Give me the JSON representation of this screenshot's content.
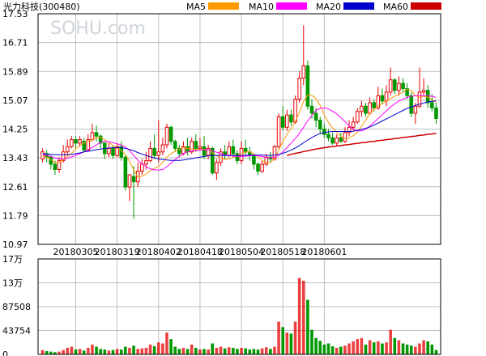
{
  "chart_data": {
    "type": "candlestick",
    "title": "光力科技(300480)",
    "watermark": "SOHU.com",
    "legend": [
      {
        "name": "MA5",
        "color": "#ff9900"
      },
      {
        "name": "MA10",
        "color": "#ff00ff"
      },
      {
        "name": "MA20",
        "color": "#0000cc"
      },
      {
        "name": "MA60",
        "color": "#cc0000"
      }
    ],
    "colors": {
      "up": "#e60000",
      "down": "#009900",
      "grid": "#bfbfbf",
      "frame": "#000000"
    },
    "price_axis": {
      "ticks": [
        "17.53",
        "16.71",
        "15.89",
        "15.07",
        "14.25",
        "13.43",
        "12.61",
        "11.79",
        "10.97"
      ],
      "range": [
        10.97,
        17.53
      ]
    },
    "volume_axis": {
      "ticks": [
        "17万",
        "13万",
        "87508",
        "43754",
        "0"
      ],
      "range": [
        0,
        175000
      ]
    },
    "date_labels": [
      {
        "label": "20180305",
        "index": 8
      },
      {
        "label": "20180319",
        "index": 18
      },
      {
        "label": "20180402",
        "index": 28
      },
      {
        "label": "20180418",
        "index": 38
      },
      {
        "label": "20180504",
        "index": 48
      },
      {
        "label": "20180518",
        "index": 58
      },
      {
        "label": "20180601",
        "index": 68
      }
    ],
    "candles": [
      [
        13.4,
        13.6,
        13.3,
        13.7
      ],
      [
        13.55,
        13.45,
        13.3,
        13.65
      ],
      [
        13.45,
        13.25,
        13.1,
        13.5
      ],
      [
        13.25,
        13.1,
        12.95,
        13.35
      ],
      [
        13.1,
        13.35,
        13.0,
        13.45
      ],
      [
        13.35,
        13.6,
        13.3,
        13.8
      ],
      [
        13.6,
        13.75,
        13.5,
        13.95
      ],
      [
        13.75,
        13.95,
        13.7,
        14.05
      ],
      [
        13.95,
        13.85,
        13.7,
        14.05
      ],
      [
        13.85,
        13.95,
        13.75,
        14.05
      ],
      [
        13.9,
        13.65,
        13.6,
        14.0
      ],
      [
        13.65,
        13.95,
        13.6,
        14.1
      ],
      [
        13.95,
        14.15,
        13.9,
        14.4
      ],
      [
        14.15,
        14.05,
        13.9,
        14.35
      ],
      [
        14.05,
        13.85,
        13.7,
        14.1
      ],
      [
        13.85,
        13.55,
        13.4,
        13.9
      ],
      [
        13.55,
        13.7,
        13.45,
        13.85
      ],
      [
        13.7,
        13.5,
        13.4,
        13.8
      ],
      [
        13.5,
        13.75,
        13.45,
        13.85
      ],
      [
        13.75,
        13.45,
        13.35,
        13.9
      ],
      [
        13.45,
        12.6,
        12.5,
        13.5
      ],
      [
        12.6,
        12.95,
        12.2,
        12.95
      ],
      [
        12.9,
        12.75,
        11.7,
        13.2
      ],
      [
        12.75,
        13.05,
        12.6,
        13.3
      ],
      [
        13.05,
        13.25,
        12.95,
        13.4
      ],
      [
        13.25,
        13.35,
        13.1,
        13.6
      ],
      [
        13.35,
        13.7,
        13.3,
        13.9
      ],
      [
        13.7,
        13.5,
        13.4,
        14.1
      ],
      [
        13.5,
        13.6,
        13.3,
        14.5
      ],
      [
        13.6,
        13.8,
        13.5,
        14.0
      ],
      [
        13.8,
        14.3,
        13.7,
        14.4
      ],
      [
        14.3,
        13.9,
        13.8,
        14.35
      ],
      [
        13.9,
        13.7,
        13.6,
        13.95
      ],
      [
        13.7,
        13.55,
        13.45,
        13.8
      ],
      [
        13.55,
        13.75,
        13.5,
        13.9
      ],
      [
        13.75,
        13.6,
        13.5,
        14.0
      ],
      [
        13.6,
        13.9,
        13.55,
        14.0
      ],
      [
        13.9,
        13.7,
        13.6,
        14.1
      ],
      [
        13.7,
        13.75,
        13.65,
        14.0
      ],
      [
        13.75,
        13.5,
        13.4,
        14.05
      ],
      [
        13.5,
        13.7,
        13.4,
        13.8
      ],
      [
        13.7,
        13.0,
        12.95,
        13.75
      ],
      [
        13.0,
        13.3,
        12.8,
        13.4
      ],
      [
        13.3,
        13.6,
        13.2,
        13.7
      ],
      [
        13.6,
        13.5,
        13.4,
        13.8
      ],
      [
        13.5,
        13.75,
        13.45,
        13.9
      ],
      [
        13.75,
        13.55,
        13.45,
        13.95
      ],
      [
        13.55,
        13.35,
        13.25,
        13.65
      ],
      [
        13.35,
        13.7,
        13.25,
        13.9
      ],
      [
        13.7,
        13.6,
        13.5,
        13.95
      ],
      [
        13.6,
        13.5,
        13.35,
        13.75
      ],
      [
        13.5,
        13.25,
        13.1,
        13.55
      ],
      [
        13.25,
        13.05,
        12.95,
        13.3
      ],
      [
        13.05,
        13.25,
        13.0,
        13.35
      ],
      [
        13.25,
        13.45,
        13.2,
        13.55
      ],
      [
        13.45,
        13.4,
        13.3,
        13.6
      ],
      [
        13.4,
        13.75,
        13.35,
        13.8
      ],
      [
        13.75,
        14.6,
        13.7,
        14.7
      ],
      [
        14.6,
        14.3,
        14.2,
        14.9
      ],
      [
        14.3,
        14.65,
        14.2,
        14.8
      ],
      [
        14.65,
        14.45,
        14.35,
        14.8
      ],
      [
        14.45,
        15.1,
        14.4,
        15.2
      ],
      [
        15.1,
        15.7,
        15.0,
        15.9
      ],
      [
        15.7,
        16.05,
        15.5,
        17.2
      ],
      [
        16.05,
        14.9,
        14.8,
        16.2
      ],
      [
        14.9,
        14.7,
        14.55,
        15.1
      ],
      [
        14.7,
        14.5,
        14.3,
        14.85
      ],
      [
        14.5,
        14.25,
        14.1,
        14.6
      ],
      [
        14.25,
        14.1,
        14.0,
        14.4
      ],
      [
        14.1,
        14.0,
        13.9,
        14.25
      ],
      [
        14.0,
        13.85,
        13.8,
        14.15
      ],
      [
        13.85,
        14.0,
        13.75,
        14.1
      ],
      [
        14.0,
        13.9,
        13.85,
        14.15
      ],
      [
        13.9,
        14.15,
        13.85,
        14.3
      ],
      [
        14.15,
        14.3,
        14.05,
        14.5
      ],
      [
        14.3,
        14.45,
        14.2,
        14.6
      ],
      [
        14.45,
        14.75,
        14.4,
        14.85
      ],
      [
        14.75,
        14.9,
        14.6,
        15.05
      ],
      [
        14.9,
        14.7,
        14.6,
        15.0
      ],
      [
        14.7,
        15.0,
        14.65,
        15.15
      ],
      [
        15.0,
        14.85,
        14.75,
        15.1
      ],
      [
        14.85,
        15.2,
        14.8,
        15.45
      ],
      [
        15.2,
        15.05,
        14.95,
        15.4
      ],
      [
        15.05,
        15.3,
        14.9,
        15.5
      ],
      [
        15.3,
        15.65,
        15.2,
        16.0
      ],
      [
        15.65,
        15.35,
        15.25,
        15.7
      ],
      [
        15.35,
        15.55,
        15.2,
        15.75
      ],
      [
        15.55,
        15.4,
        15.3,
        15.7
      ],
      [
        15.4,
        15.2,
        15.1,
        15.55
      ],
      [
        15.2,
        14.7,
        14.6,
        15.3
      ],
      [
        14.7,
        14.9,
        14.4,
        15.0
      ],
      [
        14.9,
        15.3,
        14.85,
        16.0
      ],
      [
        15.3,
        15.35,
        15.2,
        15.7
      ],
      [
        15.35,
        15.0,
        14.85,
        15.5
      ],
      [
        15.0,
        14.85,
        14.75,
        15.25
      ],
      [
        14.85,
        14.55,
        14.4,
        15.0
      ]
    ],
    "volumes": [
      8000,
      6000,
      5000,
      4000,
      5000,
      8000,
      12000,
      14000,
      9000,
      10000,
      7000,
      12000,
      18000,
      14000,
      10000,
      9000,
      7000,
      8000,
      10000,
      9000,
      14000,
      12000,
      16000,
      10000,
      11000,
      12000,
      18000,
      15000,
      22000,
      20000,
      40000,
      28000,
      14000,
      10000,
      12000,
      10000,
      18000,
      12000,
      9000,
      10000,
      9000,
      20000,
      12000,
      14000,
      11000,
      13000,
      12000,
      10000,
      12000,
      11000,
      9000,
      10000,
      9000,
      11000,
      13000,
      10000,
      14000,
      60000,
      50000,
      40000,
      38000,
      60000,
      140000,
      135000,
      100000,
      45000,
      30000,
      25000,
      18000,
      20000,
      15000,
      12000,
      14000,
      16000,
      20000,
      24000,
      28000,
      30000,
      18000,
      26000,
      22000,
      24000,
      20000,
      22000,
      45000,
      30000,
      26000,
      20000,
      18000,
      16000,
      14000,
      20000,
      26000,
      24000,
      18000,
      8000
    ],
    "ma5": [
      13.48,
      13.45,
      13.38,
      13.3,
      13.3,
      13.38,
      13.46,
      13.56,
      13.69,
      13.79,
      13.85,
      13.9,
      13.95,
      14.0,
      14.02,
      13.95,
      13.87,
      13.78,
      13.7,
      13.64,
      13.52,
      13.33,
      13.08,
      12.88,
      12.91,
      12.97,
      13.07,
      13.13,
      13.19,
      13.3,
      13.45,
      13.55,
      13.62,
      13.68,
      13.72,
      13.7,
      13.68,
      13.66,
      13.67,
      13.67,
      13.66,
      13.58,
      13.49,
      13.43,
      13.38,
      13.4,
      13.45,
      13.5,
      13.55,
      13.6,
      13.6,
      13.55,
      13.45,
      13.35,
      13.3,
      13.3,
      13.42,
      13.65,
      13.9,
      14.1,
      14.27,
      14.46,
      14.72,
      15.04,
      15.22,
      15.21,
      15.12,
      14.92,
      14.66,
      14.44,
      14.28,
      14.16,
      14.04,
      13.98,
      14.0,
      14.06,
      14.16,
      14.33,
      14.51,
      14.68,
      14.81,
      14.91,
      14.97,
      15.04,
      15.12,
      15.18,
      15.24,
      15.3,
      15.38,
      15.35,
      15.2,
      15.15,
      15.18,
      15.16,
      15.1,
      15.0
    ],
    "ma10": [
      13.52,
      13.5,
      13.47,
      13.43,
      13.4,
      13.4,
      13.42,
      13.46,
      13.5,
      13.55,
      13.6,
      13.66,
      13.73,
      13.8,
      13.87,
      13.9,
      13.89,
      13.86,
      13.83,
      13.8,
      13.74,
      13.64,
      13.5,
      13.36,
      13.25,
      13.18,
      13.12,
      13.09,
      13.08,
      13.1,
      13.18,
      13.28,
      13.38,
      13.47,
      13.55,
      13.6,
      13.62,
      13.64,
      13.65,
      13.66,
      13.66,
      13.63,
      13.59,
      13.55,
      13.52,
      13.5,
      13.48,
      13.47,
      13.47,
      13.48,
      13.49,
      13.5,
      13.49,
      13.47,
      13.44,
      13.43,
      13.45,
      13.5,
      13.6,
      13.72,
      13.85,
      13.98,
      14.12,
      14.3,
      14.48,
      14.64,
      14.78,
      14.84,
      14.85,
      14.82,
      14.76,
      14.68,
      14.58,
      14.46,
      14.34,
      14.25,
      14.2,
      14.2,
      14.25,
      14.33,
      14.44,
      14.55,
      14.66,
      14.77,
      14.88,
      14.97,
      15.04,
      15.1,
      15.15,
      15.18,
      15.2,
      15.2,
      15.2,
      15.2,
      15.18,
      15.15
    ],
    "ma20": [
      13.55,
      13.54,
      13.53,
      13.52,
      13.52,
      13.52,
      13.52,
      13.53,
      13.55,
      13.57,
      13.6,
      13.62,
      13.64,
      13.66,
      13.68,
      13.7,
      13.71,
      13.72,
      13.72,
      13.72,
      13.7,
      13.67,
      13.63,
      13.58,
      13.54,
      13.5,
      13.46,
      13.43,
      13.4,
      13.38,
      13.37,
      13.36,
      13.36,
      13.36,
      13.37,
      13.39,
      13.41,
      13.43,
      13.45,
      13.47,
      13.49,
      13.5,
      13.5,
      13.5,
      13.5,
      13.5,
      13.5,
      13.5,
      13.5,
      13.5,
      13.51,
      13.51,
      13.51,
      13.51,
      13.5,
      13.5,
      13.51,
      13.53,
      13.56,
      13.6,
      13.65,
      13.71,
      13.78,
      13.86,
      13.94,
      14.01,
      14.07,
      14.12,
      14.15,
      14.17,
      14.18,
      14.18,
      14.18,
      14.18,
      14.18,
      14.19,
      14.21,
      14.24,
      14.27,
      14.31,
      14.36,
      14.42,
      14.48,
      14.54,
      14.6,
      14.66,
      14.72,
      14.78,
      14.84,
      14.88,
      14.92,
      14.96,
      14.99,
      15.02,
      15.04,
      15.05
    ],
    "ma60": [
      null,
      null,
      null,
      null,
      null,
      null,
      null,
      null,
      null,
      null,
      null,
      null,
      null,
      null,
      null,
      null,
      null,
      null,
      null,
      null,
      null,
      null,
      null,
      null,
      null,
      null,
      null,
      null,
      null,
      null,
      null,
      null,
      null,
      null,
      null,
      null,
      null,
      null,
      null,
      null,
      null,
      null,
      null,
      null,
      null,
      null,
      null,
      null,
      null,
      null,
      null,
      null,
      null,
      null,
      null,
      null,
      null,
      null,
      null,
      13.5,
      13.53,
      13.56,
      13.58,
      13.61,
      13.63,
      13.66,
      13.68,
      13.7,
      13.72,
      13.74,
      13.75,
      13.77,
      13.78,
      13.8,
      13.81,
      13.83,
      13.84,
      13.86,
      13.87,
      13.89,
      13.9,
      13.92,
      13.93,
      13.95,
      13.96,
      13.98,
      13.99,
      14.01,
      14.02,
      14.04,
      14.05,
      14.07,
      14.08,
      14.1,
      14.11,
      14.13
    ]
  }
}
